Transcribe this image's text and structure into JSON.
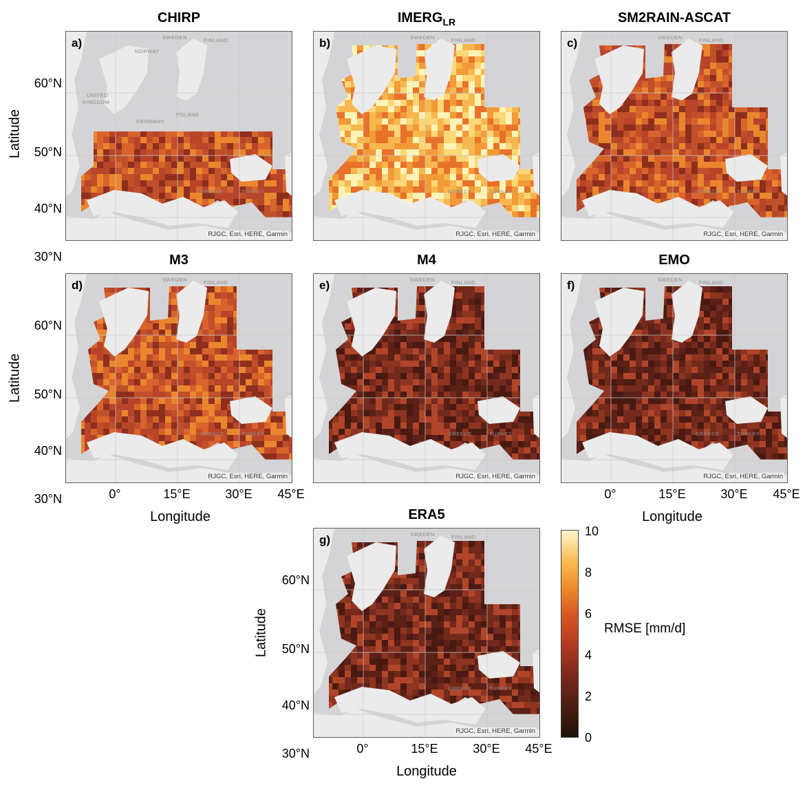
{
  "panels": [
    {
      "id": "a",
      "title": "CHIRP",
      "title_sub": "",
      "label": "a)",
      "attribution": "RJGC, Esri, HERE, Garmin",
      "coverage": "south",
      "intensity": "medium"
    },
    {
      "id": "b",
      "title": "IMERG",
      "title_sub": "LR",
      "label": "b)",
      "attribution": "RJGC, Esri, HERE, Garmin",
      "coverage": "full",
      "intensity": "high"
    },
    {
      "id": "c",
      "title": "SM2RAIN-ASCAT",
      "title_sub": "",
      "label": "c)",
      "attribution": "RJGC, Esri, HERE, Garmin",
      "coverage": "full",
      "intensity": "medium"
    },
    {
      "id": "d",
      "title": "M3",
      "title_sub": "",
      "label": "d)",
      "attribution": "RJGC, Esri, HERE, Garmin",
      "coverage": "full",
      "intensity": "medium"
    },
    {
      "id": "e",
      "title": "M4",
      "title_sub": "",
      "label": "e)",
      "attribution": "RJGC, Esri, HERE, Garmin",
      "coverage": "full",
      "intensity": "low"
    },
    {
      "id": "f",
      "title": "EMO",
      "title_sub": "",
      "label": "f)",
      "attribution": "RJGC, Esri, HERE, Garmin",
      "coverage": "full",
      "intensity": "low"
    },
    {
      "id": "g",
      "title": "ERA5",
      "title_sub": "",
      "label": "g)",
      "attribution": "RJGC, Esri, HERE, Garmin",
      "coverage": "full",
      "intensity": "low"
    }
  ],
  "country_labels": [
    "SWEDEN",
    "FINLAND",
    "NORWAY",
    "UNITED",
    "KINGDOM",
    "POLAND",
    "GERMANY",
    "GREECE",
    "TURKEY"
  ],
  "axes": {
    "lat_ticks": [
      "60°N",
      "50°N",
      "40°N",
      "30°N"
    ],
    "lon_ticks": [
      "0°",
      "15°E",
      "30°E",
      "45°E"
    ],
    "xlabel": "Longitude",
    "ylabel": "Latitude"
  },
  "colorbar": {
    "label": "RMSE [mm/d]",
    "ticks": [
      "10",
      "8",
      "6",
      "4",
      "2",
      "0"
    ],
    "min": 0,
    "max": 10,
    "colors": {
      "low": "#1e1208",
      "mid": "#b43a22",
      "high": "#fff7c8"
    }
  }
}
